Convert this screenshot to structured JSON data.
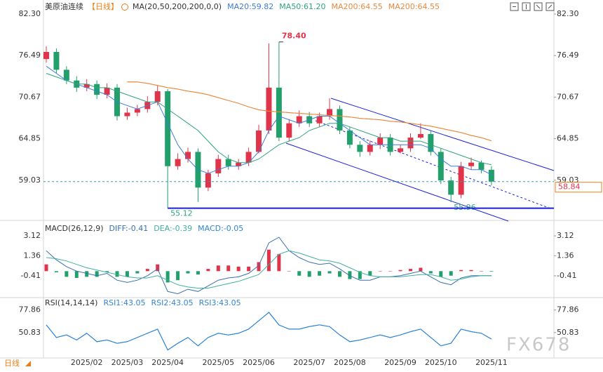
{
  "chart_data": [
    {
      "type": "candlestick",
      "title": "美原油连续",
      "period": "【日线】",
      "indicator": "MA(20,50,200,200,0,0)",
      "up_color": "#e0344a",
      "down_color": "#22a06b",
      "categories": [
        null,
        null,
        null,
        null,
        "2025/02",
        null,
        null,
        null,
        "2025/03",
        null,
        null,
        null,
        "2025/04",
        null,
        null,
        null,
        null,
        "2025/05",
        null,
        null,
        null,
        "2025/06",
        null,
        null,
        null,
        null,
        "2025/07",
        null,
        null,
        null,
        "2025/08",
        null,
        null,
        null,
        null,
        "2025/09",
        null,
        null,
        null,
        "2025/10",
        null,
        null,
        null,
        null,
        "2025/11"
      ],
      "ohlc": {
        "open": [
          76.0,
          77.0,
          74.5,
          73.0,
          72.0,
          72.5,
          71.0,
          72.0,
          68.0,
          68.5,
          69.0,
          70.0,
          71.5,
          61.0,
          62.0,
          63.0,
          58.0,
          60.0,
          62.0,
          61.0,
          61.5,
          63.0,
          66.0,
          72.0,
          65.0,
          67.0,
          68.0,
          67.0,
          68.0,
          69.0,
          66.0,
          64.0,
          63.0,
          64.0,
          65.0,
          63.0,
          63.5,
          65.0,
          65.5,
          63.0,
          59.0,
          57.0,
          61.0,
          61.5,
          60.5
        ],
        "high": [
          77.8,
          77.5,
          75.0,
          73.6,
          73.2,
          73.0,
          72.6,
          72.5,
          69.2,
          69.6,
          70.8,
          72.3,
          71.8,
          62.8,
          63.6,
          63.5,
          60.5,
          62.6,
          62.6,
          62.0,
          63.6,
          66.8,
          78.2,
          78.4,
          67.6,
          68.8,
          68.6,
          68.5,
          70.5,
          69.5,
          66.5,
          64.5,
          64.6,
          65.6,
          65.5,
          64.0,
          65.6,
          67.0,
          66.0,
          63.5,
          59.5,
          61.6,
          62.2,
          61.8,
          61.0
        ],
        "low": [
          75.5,
          74.0,
          72.5,
          71.4,
          71.5,
          70.4,
          70.5,
          67.4,
          67.5,
          68.0,
          68.5,
          69.5,
          55.12,
          60.5,
          61.5,
          56.0,
          57.5,
          59.5,
          60.5,
          60.5,
          61.0,
          62.8,
          65.5,
          64.5,
          64.5,
          66.5,
          66.5,
          66.5,
          67.5,
          65.5,
          63.5,
          62.3,
          62.5,
          63.4,
          62.5,
          62.8,
          63.0,
          64.8,
          62.5,
          58.5,
          55.96,
          56.5,
          60.5,
          60.0,
          58.3
        ],
        "close": [
          77.0,
          74.5,
          73.0,
          72.0,
          72.5,
          71.0,
          72.0,
          68.0,
          68.5,
          69.0,
          70.0,
          71.5,
          61.0,
          62.0,
          63.0,
          58.0,
          60.0,
          62.0,
          61.0,
          61.5,
          63.0,
          66.0,
          72.0,
          65.0,
          67.0,
          68.0,
          67.0,
          68.0,
          69.0,
          66.0,
          64.0,
          63.0,
          64.0,
          65.0,
          63.0,
          63.5,
          65.0,
          65.5,
          63.0,
          59.0,
          57.0,
          61.0,
          61.5,
          60.5,
          58.84
        ]
      },
      "series": [
        {
          "name": "MA20:59.82",
          "color": "#3b7dd8",
          "values": [
            75,
            74,
            73,
            72.5,
            72,
            71.5,
            71,
            70,
            69.5,
            69,
            69.5,
            70,
            67,
            64,
            62,
            60.5,
            60,
            60.5,
            61,
            61,
            61.5,
            63,
            66,
            68,
            67.5,
            67,
            67.5,
            68,
            68,
            67,
            66,
            65,
            64,
            64,
            64,
            64,
            64,
            64,
            63.5,
            62,
            61,
            61,
            60.5,
            60.5,
            59.82
          ]
        },
        {
          "name": "MA50:61.20",
          "color": "#2fa37a",
          "values": [
            74,
            73.5,
            73,
            72.5,
            72.5,
            72,
            72,
            71.5,
            71,
            70.5,
            70,
            70,
            69,
            68,
            67,
            66,
            64.5,
            63,
            62,
            61.5,
            61.5,
            62,
            63,
            64,
            64.5,
            65,
            66,
            66.5,
            67,
            67,
            66.5,
            66,
            65.5,
            65,
            65,
            64.5,
            64.5,
            64.5,
            64,
            63.5,
            63,
            62.5,
            62,
            61.5,
            61.2
          ]
        },
        {
          "name": "MA200:64.55",
          "color": "#e8893c",
          "values": [
            null,
            null,
            null,
            null,
            null,
            null,
            null,
            null,
            72.8,
            72.8,
            72.6,
            72.3,
            72,
            71.8,
            71.5,
            71.3,
            71,
            70.6,
            70.2,
            69.8,
            69.3,
            68.9,
            68.7,
            68.6,
            68.5,
            68.4,
            68.3,
            68.2,
            68.1,
            68,
            67.9,
            67.7,
            67.6,
            67.5,
            67.3,
            67.2,
            67,
            66.8,
            66.6,
            66.3,
            66,
            65.7,
            65.3,
            65,
            64.55
          ]
        },
        {
          "name": "MA200:64.55",
          "color": "#e8893c",
          "values": [
            null,
            null,
            null,
            null,
            null,
            null,
            null,
            null,
            72.8,
            72.8,
            72.6,
            72.3,
            72,
            71.8,
            71.5,
            71.3,
            71,
            70.6,
            70.2,
            69.8,
            69.3,
            68.9,
            68.7,
            68.6,
            68.5,
            68.4,
            68.3,
            68.2,
            68.1,
            68,
            67.9,
            67.7,
            67.6,
            67.5,
            67.3,
            67.2,
            67,
            66.8,
            66.6,
            66.3,
            66,
            65.7,
            65.3,
            65,
            64.55
          ]
        }
      ],
      "annotations": [
        {
          "value": 78.4,
          "label": "78.40",
          "color": "#e0344a"
        },
        {
          "value": 55.12,
          "label": "55.12",
          "color": "#2aa385"
        },
        {
          "value": 55.96,
          "label": "55.96",
          "color": "#2aa385"
        }
      ],
      "support_color": "#1a22d8",
      "last_price": 58.84,
      "last_price_color": "#e0344a",
      "ylim": [
        53.8,
        83.29
      ],
      "yticks": [
        {
          "value": 82.3,
          "label": "82.30"
        },
        76.49,
        70.67,
        64.85,
        59.03
      ]
    },
    {
      "type": "combo",
      "title": "MACD(26,12,9)",
      "up_color": "#e0344a",
      "down_color": "#22a06b",
      "series": [
        {
          "name": "DIFF:-0.41",
          "color": "#3a6fb0",
          "values": [
            1.8,
            1.0,
            0.4,
            0.0,
            -0.2,
            -0.4,
            -0.2,
            -0.8,
            -1.0,
            -0.8,
            -0.4,
            0.2,
            -1.8,
            -2.0,
            -1.6,
            -1.8,
            -1.3,
            -0.8,
            -0.6,
            -0.5,
            -0.2,
            0.5,
            2.5,
            3.0,
            1.8,
            1.2,
            0.8,
            0.6,
            0.7,
            0.2,
            -0.4,
            -0.8,
            -0.8,
            -0.5,
            -0.5,
            -0.4,
            -0.2,
            0.0,
            -0.5,
            -1.0,
            -1.2,
            -0.6,
            -0.4,
            -0.4,
            -0.41
          ]
        },
        {
          "name": "DEA:-0.39",
          "color": "#3fb0a0",
          "values": [
            1.2,
            1.1,
            0.9,
            0.6,
            0.3,
            0.1,
            -0.1,
            -0.3,
            -0.5,
            -0.6,
            -0.6,
            -0.4,
            -0.8,
            -1.2,
            -1.4,
            -1.5,
            -1.5,
            -1.3,
            -1.1,
            -0.9,
            -0.6,
            -0.3,
            0.6,
            1.5,
            1.8,
            1.6,
            1.3,
            1.0,
            0.9,
            0.7,
            0.3,
            -0.1,
            -0.4,
            -0.5,
            -0.5,
            -0.5,
            -0.4,
            -0.3,
            -0.3,
            -0.5,
            -0.8,
            -0.7,
            -0.5,
            -0.4,
            -0.39
          ]
        },
        {
          "name": "MACD:-0.05",
          "color": "#2f86d6",
          "kind": "bar",
          "values": [
            0.6,
            -0.1,
            -0.5,
            -0.6,
            -0.5,
            -0.5,
            -0.1,
            -0.5,
            -0.5,
            -0.2,
            0.2,
            0.6,
            -1.0,
            -0.8,
            -0.2,
            -0.3,
            0.2,
            0.5,
            0.5,
            0.4,
            0.4,
            0.8,
            1.9,
            1.5,
            0.0,
            -0.4,
            -0.5,
            -0.4,
            -0.2,
            -0.5,
            -0.7,
            -0.7,
            -0.4,
            0.0,
            0.0,
            0.1,
            0.2,
            0.3,
            -0.2,
            -0.5,
            -0.4,
            0.1,
            0.1,
            0.0,
            -0.05
          ]
        }
      ],
      "ylim": [
        -2.09,
        4.24
      ],
      "yticks": [
        3.12,
        1.36,
        -0.41
      ]
    },
    {
      "type": "line",
      "title": "RSI(14,14,14)",
      "series": [
        {
          "name": "RSI1:43.05",
          "color": "#2f86d6",
          "values": [
            60,
            45,
            48,
            42,
            50,
            40,
            42,
            38,
            40,
            45,
            50,
            55,
            30,
            38,
            45,
            35,
            45,
            50,
            48,
            50,
            55,
            65,
            75,
            60,
            55,
            55,
            58,
            60,
            58,
            48,
            40,
            42,
            45,
            48,
            45,
            48,
            52,
            55,
            45,
            35,
            38,
            55,
            52,
            50,
            43.05
          ]
        },
        {
          "name": "RSI2:43.05",
          "color": "#2f86d6",
          "values": [
            60,
            45,
            48,
            42,
            50,
            40,
            42,
            38,
            40,
            45,
            50,
            55,
            30,
            38,
            45,
            35,
            45,
            50,
            48,
            50,
            55,
            65,
            75,
            60,
            55,
            55,
            58,
            60,
            58,
            48,
            40,
            42,
            45,
            48,
            45,
            48,
            52,
            55,
            45,
            35,
            38,
            55,
            52,
            50,
            43.05
          ]
        },
        {
          "name": "RSI3:43.05",
          "color": "#2f86d6",
          "values": [
            60,
            45,
            48,
            42,
            50,
            40,
            42,
            38,
            40,
            45,
            50,
            55,
            30,
            38,
            45,
            35,
            45,
            50,
            48,
            50,
            55,
            65,
            75,
            60,
            55,
            55,
            58,
            60,
            58,
            48,
            40,
            42,
            45,
            48,
            45,
            48,
            52,
            55,
            45,
            35,
            38,
            55,
            52,
            50,
            43.05
          ]
        }
      ],
      "ylim": [
        20.5,
        89.3
      ],
      "yticks": [
        77.86,
        50.83
      ]
    }
  ],
  "period_switch": "日线",
  "watermark": "FX678"
}
